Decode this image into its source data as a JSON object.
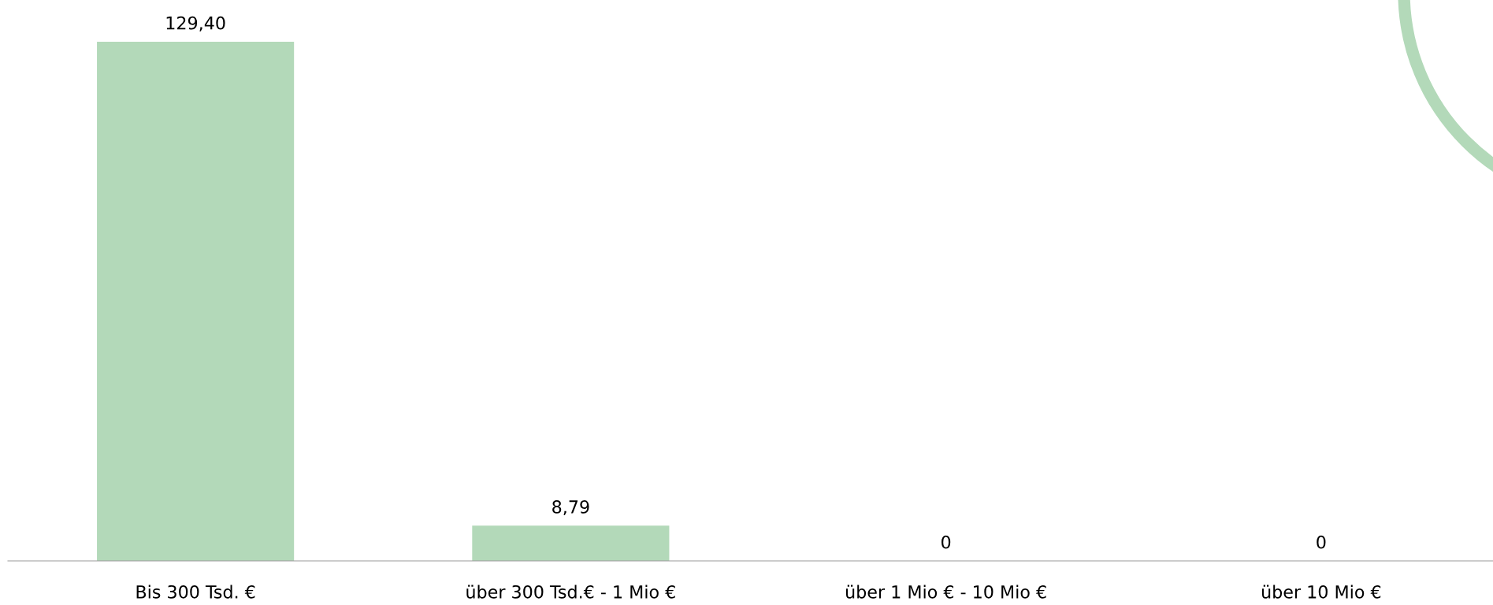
{
  "chart_data": {
    "type": "bar",
    "categories": [
      "Bis 300 Tsd. €",
      "über 300 Tsd.€ - 1 Mio €",
      "über 1 Mio € - 10 Mio €",
      "über 10 Mio €"
    ],
    "values": [
      129.4,
      8.79,
      0,
      0
    ],
    "value_labels": [
      "129,40",
      "8,79",
      "0",
      "0"
    ],
    "color": "#b3d9b9",
    "grid": false
  }
}
